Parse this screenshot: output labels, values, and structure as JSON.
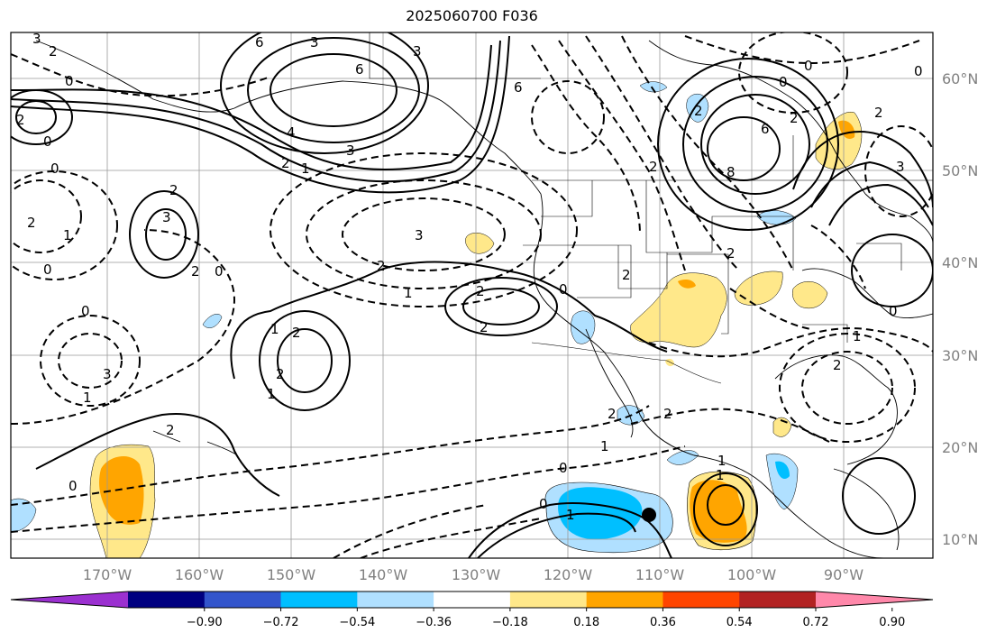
{
  "title": "2025060700 F036",
  "lat_labels": [
    "60°N",
    "50°N",
    "40°N",
    "30°N",
    "20°N",
    "10°N"
  ],
  "lon_labels": [
    "170°W",
    "160°W",
    "150°W",
    "140°W",
    "130°W",
    "120°W",
    "110°W",
    "100°W",
    "90°W"
  ],
  "colorbar": {
    "labels": [
      "−0.90",
      "−0.72",
      "−0.54",
      "−0.36",
      "−0.18",
      "0.18",
      "0.36",
      "0.54",
      "0.72",
      "0.90"
    ],
    "colors": [
      "#9b30d0",
      "#000080",
      "#3355cc",
      "#00bfff",
      "#b0e0ff",
      "#ffffff",
      "#ffe88a",
      "#ffa500",
      "#ff4500",
      "#b22222",
      "#ff88aa"
    ]
  },
  "contour_labels": [
    "3",
    "2",
    "0",
    "6",
    "3",
    "3",
    "6",
    "4",
    "3",
    "2",
    "1",
    "2",
    "0",
    "0",
    "3",
    "2",
    "2",
    "1",
    "0",
    "3",
    "2",
    "0",
    "2",
    "1",
    "0",
    "0",
    "2",
    "2",
    "1",
    "2",
    "2",
    "1",
    "3",
    "1",
    "2",
    "0",
    "2",
    "1",
    "2",
    "6",
    "2",
    "8",
    "6",
    "0",
    "0",
    "2",
    "0",
    "2",
    "3",
    "2",
    "0",
    "1",
    "0",
    "2",
    "2",
    "1",
    "0",
    "1",
    "1",
    "2"
  ],
  "marker": "black-dot"
}
